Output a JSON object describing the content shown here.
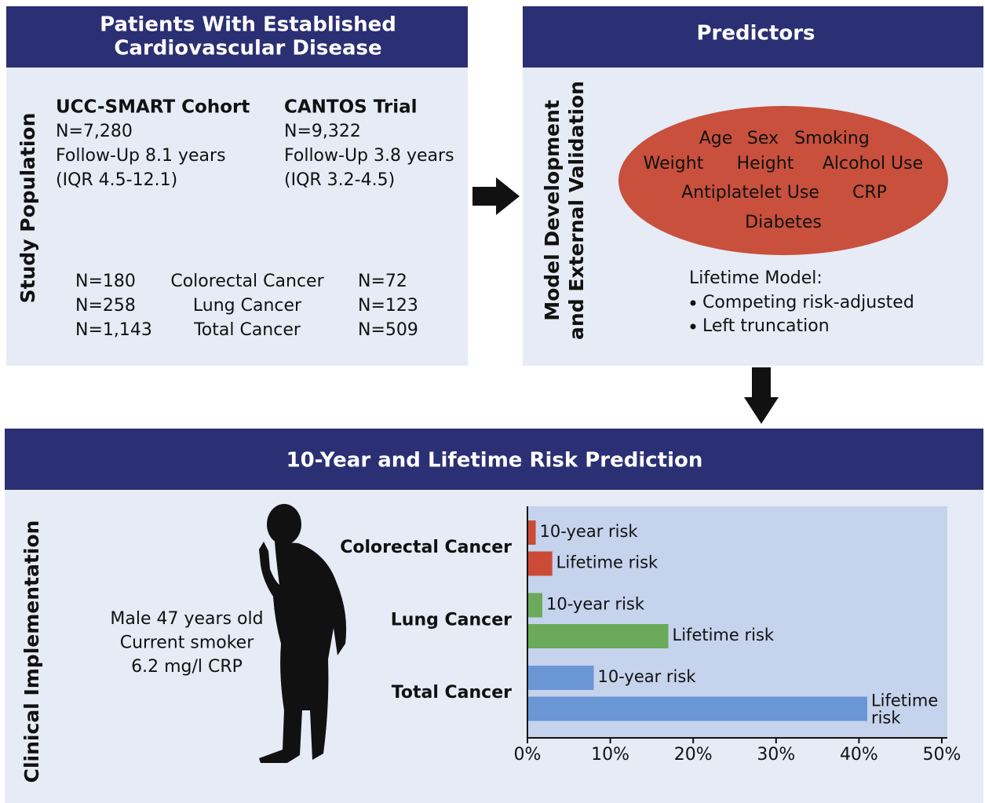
{
  "study": {
    "title": [
      "Patients With Established",
      "Cardiovascular Disease"
    ],
    "side_label": "Study Population",
    "cohorts": [
      {
        "name": "UCC-SMART Cohort",
        "lines": [
          "N=7,280",
          "Follow-Up 8.1 years",
          "(IQR 4.5-12.1)"
        ]
      },
      {
        "name": "CANTOS Trial",
        "lines": [
          "N=9,322",
          "Follow-Up 3.8 years",
          "(IQR 3.2-4.5)"
        ]
      }
    ],
    "outcomes": [
      {
        "left": "N=180",
        "name": "Colorectal Cancer",
        "right": "N=72",
        "color": "#cc4b37"
      },
      {
        "left": "N=258",
        "name": "Lung Cancer",
        "right": "N=123",
        "color": "#5fa552"
      },
      {
        "left": "N=1,143",
        "name": "Total Cancer",
        "right": "N=509",
        "color": "#5b8fd6"
      }
    ]
  },
  "predictors": {
    "title": "Predictors",
    "side_label": [
      "Model Development",
      "and External Validation"
    ],
    "items": [
      [
        "Age",
        "Sex",
        "Smoking"
      ],
      [
        "Weight",
        "Height",
        "Alcohol Use"
      ],
      [
        "Antiplatelet Use",
        "CRP"
      ],
      [
        "Diabetes"
      ]
    ],
    "model_title": "Lifetime Model:",
    "model_bullets": [
      "Competing risk-adjusted",
      "Left truncation"
    ]
  },
  "implementation": {
    "title": "10-Year and Lifetime Risk Prediction",
    "side_label": "Clinical Implementation",
    "patient": [
      "Male 47 years old",
      "Current smoker",
      "6.2 mg/l CRP"
    ],
    "chart": {
      "type": "bar",
      "orientation": "horizontal",
      "categories": [
        "Colorectal Cancer",
        "Lung Cancer",
        "Total Cancer"
      ],
      "colors": [
        "#cc4b37",
        "#6aaa5a",
        "#6a96d6"
      ],
      "series": [
        {
          "name": "10-year risk",
          "values": [
            1,
            1.8,
            8
          ]
        },
        {
          "name": "Lifetime risk",
          "values": [
            3,
            17,
            41
          ]
        }
      ],
      "xlim": [
        0,
        50
      ],
      "xticks": [
        {
          "value": 0,
          "label": "0%"
        },
        {
          "value": 10,
          "label": "10%"
        },
        {
          "value": 20,
          "label": "20%"
        },
        {
          "value": 30,
          "label": "30%"
        },
        {
          "value": 40,
          "label": "40%"
        },
        {
          "value": 50,
          "label": "50%"
        }
      ]
    }
  }
}
